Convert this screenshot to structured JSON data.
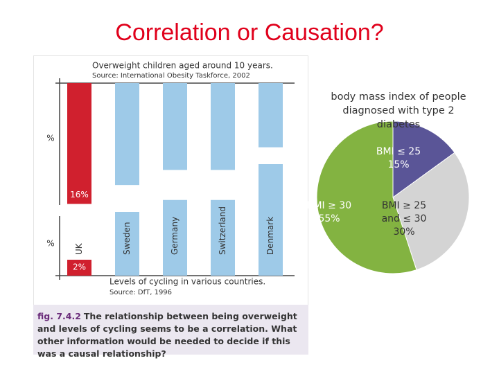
{
  "title": "Correlation or Causation?",
  "figure": {
    "caption_label": "fig. 7.4.2",
    "caption": "The relationship between being overweight and levels of cycling seems to be a correlation. What other information would be needed to decide if this was a causal relationship?"
  },
  "chart_data": [
    {
      "type": "bar",
      "orientation": "hanging",
      "title": "Overweight children aged around 10 years.",
      "subtitle": "Source: International Obesity Taskforce, 2002",
      "y_label": "%",
      "values": [
        16,
        13.5,
        11.5,
        11.5,
        8.5
      ],
      "value_labels": [
        "16%",
        null,
        null,
        null,
        null
      ],
      "colors": [
        "#d0202e",
        "#9ecae8",
        "#9ecae8",
        "#9ecae8",
        "#9ecae8"
      ],
      "ylim": [
        0,
        17
      ]
    },
    {
      "type": "bar",
      "orientation": "rising",
      "title": "Levels of cycling in various countries.",
      "subtitle": "Source: DfT, 1996",
      "y_label": "%",
      "categories": [
        "UK",
        "Sweden",
        "Germany",
        "Switzerland",
        "Denmark"
      ],
      "values": [
        2,
        8,
        9.5,
        9.5,
        14
      ],
      "value_labels": [
        "2%",
        null,
        null,
        null,
        null
      ],
      "colors": [
        "#d0202e",
        "#9ecae8",
        "#9ecae8",
        "#9ecae8",
        "#9ecae8"
      ],
      "ylim": [
        0,
        15
      ]
    },
    {
      "type": "pie",
      "title": "body mass index of people diagnosed with type 2 diabetes",
      "categories": [
        "BMI ≤ 25",
        "BMI ≥ 25 and ≤ 30",
        "BMI ≥ 30"
      ],
      "values": [
        15,
        30,
        55
      ],
      "value_labels": [
        "15%",
        "30%",
        "55%"
      ],
      "colors": [
        "#5a5597",
        "#d4d4d4",
        "#83b341"
      ]
    }
  ]
}
